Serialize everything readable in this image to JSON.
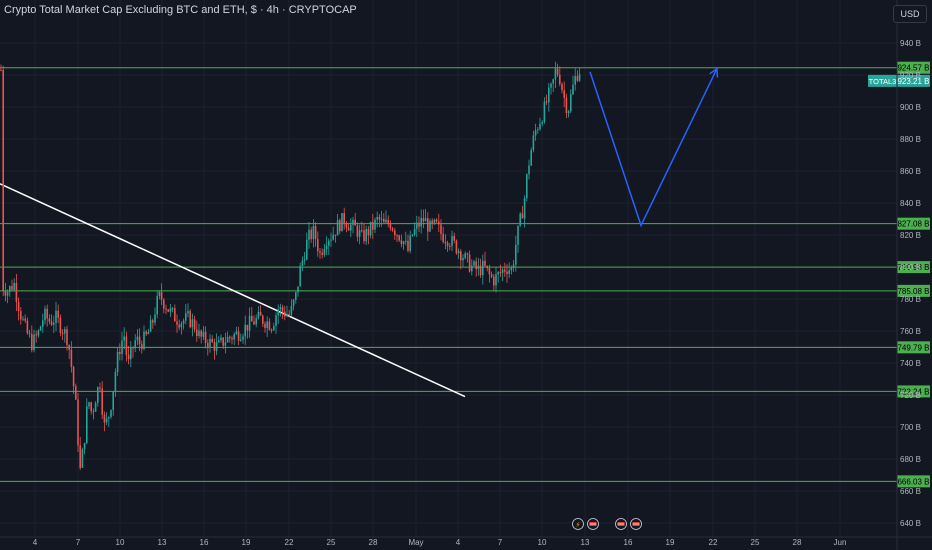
{
  "header": {
    "title": "Crypto Total Market Cap Excluding BTC and ETH, $ · 4h · CRYPTOCAP",
    "currency_button": "USD"
  },
  "colors": {
    "background": "#131722",
    "grid": "#1e222d",
    "up": "#26a69a",
    "down": "#ef5350",
    "level_line": "#4caf50",
    "level_label_bg": "#4caf50",
    "trendline": "#ffffff",
    "projection": "#2962ff",
    "axis_text": "#b2b5be",
    "current_price_bg": "#26a69a"
  },
  "chart_data": {
    "type": "candlestick",
    "symbol": "TOTAL3",
    "timeframe": "4h",
    "y_axis": {
      "ticks": [
        "940 B",
        "920 B",
        "900 B",
        "880 B",
        "860 B",
        "840 B",
        "820 B",
        "800 B",
        "780 B",
        "760 B",
        "740 B",
        "720 B",
        "700 B",
        "680 B",
        "660 B",
        "640 B"
      ],
      "ylim": [
        636,
        948
      ]
    },
    "x_axis": {
      "ticks": [
        "4",
        "7",
        "10",
        "13",
        "16",
        "19",
        "22",
        "25",
        "28",
        "May",
        "4",
        "7",
        "10",
        "13",
        "16",
        "19",
        "22",
        "25",
        "28",
        "Jun"
      ]
    },
    "horizontal_levels": [
      {
        "label": "924.57 B",
        "value": 924.57
      },
      {
        "label": "827.08 B",
        "value": 827.08
      },
      {
        "label": "799.93 B",
        "value": 799.93
      },
      {
        "label": "785.08 B",
        "value": 785.08
      },
      {
        "label": "749.79 B",
        "value": 749.79
      },
      {
        "label": "722.24 B",
        "value": 722.24
      },
      {
        "label": "666.03 B",
        "value": 666.03
      }
    ],
    "current_price": {
      "symbol_label": "TOTAL3",
      "value_label": "923.21 B",
      "value": 923.21
    },
    "trendline": {
      "points": [
        {
          "t": 0,
          "v": 852
        },
        {
          "t": 465,
          "v": 719
        }
      ]
    },
    "projection_path": {
      "points": [
        {
          "t": 590,
          "v": 922
        },
        {
          "t": 641,
          "v": 826
        },
        {
          "t": 717,
          "v": 924
        }
      ]
    },
    "candle_anchors": [
      [
        2,
        788
      ],
      [
        8,
        785
      ],
      [
        14,
        790
      ],
      [
        20,
        772
      ],
      [
        26,
        760
      ],
      [
        32,
        752
      ],
      [
        38,
        758
      ],
      [
        44,
        770
      ],
      [
        50,
        766
      ],
      [
        56,
        768
      ],
      [
        62,
        762
      ],
      [
        68,
        755
      ],
      [
        72,
        735
      ],
      [
        76,
        712
      ],
      [
        80,
        672
      ],
      [
        84,
        690
      ],
      [
        88,
        718
      ],
      [
        92,
        708
      ],
      [
        96,
        720
      ],
      [
        100,
        728
      ],
      [
        104,
        700
      ],
      [
        108,
        705
      ],
      [
        112,
        718
      ],
      [
        116,
        738
      ],
      [
        120,
        750
      ],
      [
        124,
        758
      ],
      [
        128,
        738
      ],
      [
        132,
        748
      ],
      [
        136,
        755
      ],
      [
        140,
        752
      ],
      [
        146,
        756
      ],
      [
        152,
        764
      ],
      [
        156,
        776
      ],
      [
        160,
        782
      ],
      [
        164,
        778
      ],
      [
        170,
        772
      ],
      [
        176,
        768
      ],
      [
        182,
        766
      ],
      [
        188,
        768
      ],
      [
        194,
        764
      ],
      [
        200,
        756
      ],
      [
        206,
        754
      ],
      [
        212,
        752
      ],
      [
        218,
        750
      ],
      [
        224,
        754
      ],
      [
        230,
        756
      ],
      [
        236,
        758
      ],
      [
        242,
        760
      ],
      [
        248,
        764
      ],
      [
        254,
        766
      ],
      [
        260,
        768
      ],
      [
        266,
        766
      ],
      [
        272,
        764
      ],
      [
        278,
        774
      ],
      [
        284,
        772
      ],
      [
        290,
        770
      ],
      [
        296,
        782
      ],
      [
        300,
        798
      ],
      [
        304,
        808
      ],
      [
        308,
        818
      ],
      [
        314,
        822
      ],
      [
        320,
        808
      ],
      [
        326,
        818
      ],
      [
        332,
        820
      ],
      [
        338,
        826
      ],
      [
        344,
        830
      ],
      [
        350,
        826
      ],
      [
        356,
        824
      ],
      [
        362,
        818
      ],
      [
        368,
        822
      ],
      [
        374,
        826
      ],
      [
        378,
        830
      ],
      [
        384,
        826
      ],
      [
        390,
        828
      ],
      [
        396,
        822
      ],
      [
        402,
        818
      ],
      [
        408,
        810
      ],
      [
        412,
        820
      ],
      [
        418,
        826
      ],
      [
        424,
        830
      ],
      [
        430,
        824
      ],
      [
        436,
        826
      ],
      [
        442,
        820
      ],
      [
        448,
        818
      ],
      [
        454,
        814
      ],
      [
        460,
        810
      ],
      [
        466,
        804
      ],
      [
        472,
        800
      ],
      [
        478,
        798
      ],
      [
        484,
        800
      ],
      [
        490,
        794
      ],
      [
        494,
        792
      ],
      [
        500,
        796
      ],
      [
        506,
        800
      ],
      [
        512,
        798
      ],
      [
        516,
        815
      ],
      [
        520,
        828
      ],
      [
        524,
        840
      ],
      [
        528,
        862
      ],
      [
        532,
        876
      ],
      [
        536,
        886
      ],
      [
        540,
        892
      ],
      [
        544,
        898
      ],
      [
        548,
        906
      ],
      [
        552,
        912
      ],
      [
        556,
        924
      ],
      [
        560,
        918
      ],
      [
        564,
        906
      ],
      [
        568,
        898
      ],
      [
        572,
        910
      ],
      [
        576,
        920
      ],
      [
        580,
        923.21
      ]
    ]
  },
  "event_markers": [
    {
      "name": "lightning",
      "glyph": "⚡"
    },
    {
      "name": "flag-1",
      "glyph": ""
    },
    {
      "name": "flag-2",
      "glyph": ""
    },
    {
      "name": "flag-3",
      "glyph": ""
    }
  ]
}
